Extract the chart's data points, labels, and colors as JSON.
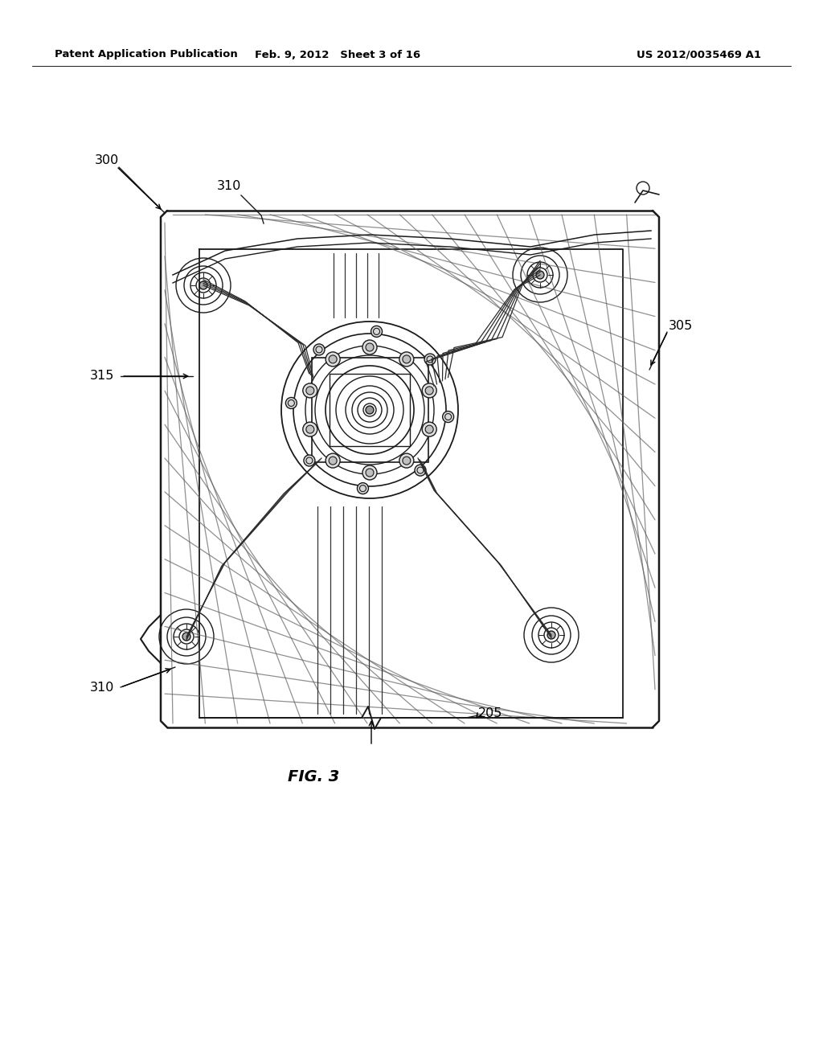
{
  "bg_color": "#ffffff",
  "header_left": "Patent Application Publication",
  "header_center": "Feb. 9, 2012   Sheet 3 of 16",
  "header_right": "US 2012/0035469 A1",
  "fig_label": "FIG. 3",
  "line_color": "#1a1a1a",
  "hatch_color": "#555555",
  "light_gray": "#cccccc",
  "mid_gray": "#888888",
  "dark_gray": "#444444"
}
